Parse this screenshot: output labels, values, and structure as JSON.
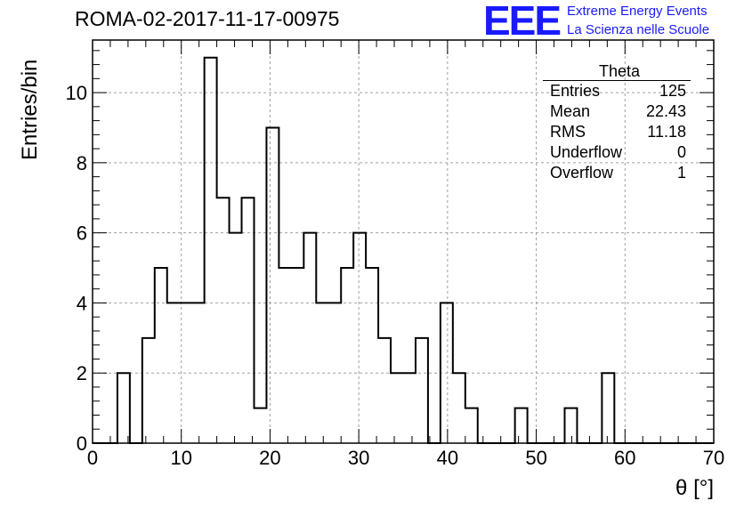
{
  "header": {
    "title": "ROMA-02-2017-11-17-00975",
    "logo_text": "EEE",
    "logo_line1": "Extreme Energy Events",
    "logo_line2": "La Scienza nelle Scuole"
  },
  "stats_box": {
    "title": "Theta",
    "rows": [
      {
        "label": "Entries",
        "value": "125"
      },
      {
        "label": "Mean",
        "value": "22.43"
      },
      {
        "label": "RMS",
        "value": "11.18"
      },
      {
        "label": "Underflow",
        "value": "0"
      },
      {
        "label": "Overflow",
        "value": "1"
      }
    ]
  },
  "chart_data": {
    "type": "bar",
    "histogram": true,
    "title": "ROMA-02-2017-11-17-00975",
    "xlabel": "θ [°]",
    "ylabel": "Entries/bin",
    "xlim": [
      0,
      70
    ],
    "ylim": [
      0,
      11.5
    ],
    "grid": true,
    "bin_width": 1.4,
    "bin_edges_start": 0,
    "values": [
      0,
      0,
      2,
      0,
      3,
      5,
      4,
      4,
      4,
      11,
      7,
      6,
      7,
      1,
      9,
      5,
      5,
      6,
      4,
      4,
      5,
      6,
      5,
      3,
      2,
      2,
      3,
      0,
      4,
      2,
      1,
      0,
      0,
      0,
      1,
      0,
      0,
      0,
      1,
      0,
      0,
      2,
      0,
      0,
      0,
      0,
      0,
      0,
      0,
      0
    ],
    "xticks": [
      0,
      10,
      20,
      30,
      40,
      50,
      60,
      70
    ],
    "yticks": [
      0,
      2,
      4,
      6,
      8,
      10
    ],
    "colors": {
      "line": "#000000",
      "grid": "#a0a0a0",
      "logo": "#1a1aff"
    }
  }
}
